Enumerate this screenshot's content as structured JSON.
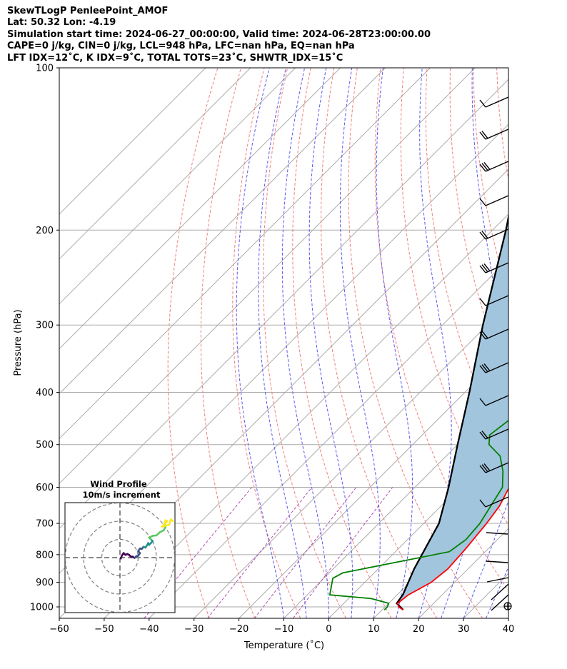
{
  "header": {
    "line1": "SkewTLogP PenleePoint_AMOF",
    "line2": "Lat: 50.32   Lon: -4.19",
    "line3": "Simulation start time: 2024-06-27_00:00:00, Valid time: 2024-06-28T23:00:00.00",
    "line4": "CAPE=0 j/kg, CIN=0 j/kg, LCL=948 hPa, LFC=nan hPa, EQ=nan hPa",
    "line5": "LFT IDX=12˚C, K IDX=9˚C, TOTAL TOTS=23˚C, SHWTR_IDX=15˚C"
  },
  "chart_data": [
    {
      "type": "line",
      "chart": "skew-t log-p",
      "xlabel": "Temperature (˚C)",
      "ylabel": "Pressure (hPa)",
      "xlim": [
        -60,
        40
      ],
      "ylim": [
        1050,
        100
      ],
      "y_scale": "log",
      "x_ticks": [
        -60,
        -50,
        -40,
        -30,
        -20,
        -10,
        0,
        10,
        20,
        30,
        40
      ],
      "y_ticks": [
        100,
        200,
        300,
        400,
        500,
        600,
        700,
        800,
        900,
        1000
      ],
      "grid": true,
      "colors": {
        "temperature": "#ff0000",
        "dewpoint": "#008000",
        "parcel": "#000000",
        "shading": "#a2c5de",
        "isotherms": "#aaaaaa",
        "dry_adiabats": "#f08080",
        "moist_adiabats": "#5a5af0",
        "mixing_ratio": "#b050b0"
      },
      "series": [
        {
          "key": "temperature",
          "points": [
            [
              14.7,
              1013
            ],
            [
              13,
              1000
            ],
            [
              12,
              985
            ],
            [
              12.5,
              950
            ],
            [
              14.8,
              900
            ],
            [
              15.5,
              850
            ],
            [
              15,
              780
            ],
            [
              14,
              700
            ],
            [
              13,
              650
            ],
            [
              11,
              600
            ],
            [
              10,
              550
            ],
            [
              8.8,
              500
            ],
            [
              7,
              450
            ],
            [
              5.3,
              400
            ],
            [
              3.8,
              350
            ],
            [
              2,
              330
            ],
            [
              -1,
              300
            ],
            [
              -5.4,
              250
            ],
            [
              -7.5,
              220
            ],
            [
              -8.5,
              200
            ],
            [
              -7.6,
              190
            ],
            [
              -5.5,
              180
            ],
            [
              -3.5,
              170
            ],
            [
              -2,
              165
            ],
            [
              -1.5,
              160
            ],
            [
              0,
              150
            ],
            [
              2,
              140
            ],
            [
              3.2,
              130
            ],
            [
              3.6,
              120
            ],
            [
              4,
              110
            ],
            [
              5.5,
              100
            ]
          ]
        },
        {
          "key": "dewpoint",
          "points": [
            [
              10.5,
              1013
            ],
            [
              10.5,
              1000
            ],
            [
              10,
              985
            ],
            [
              5,
              965
            ],
            [
              -5,
              950
            ],
            [
              -8,
              885
            ],
            [
              -7,
              865
            ],
            [
              12,
              790
            ],
            [
              13,
              750
            ],
            [
              12.5,
              700
            ],
            [
              9.5,
              600
            ],
            [
              6,
              560
            ],
            [
              2,
              525
            ],
            [
              -3,
              500
            ],
            [
              -5,
              480
            ],
            [
              -4,
              450
            ],
            [
              -3,
              400
            ],
            [
              -2,
              380
            ],
            [
              -1,
              370
            ],
            [
              -1.5,
              350
            ],
            [
              -6,
              320
            ],
            [
              -9,
              300
            ],
            [
              -7,
              280
            ],
            [
              -8,
              260
            ],
            [
              -10,
              230
            ],
            [
              -11,
              210
            ],
            [
              -11,
              200
            ],
            [
              -10,
              190
            ],
            [
              -11,
              180
            ],
            [
              -12,
              170
            ],
            [
              -15,
              160
            ],
            [
              -15,
              150
            ],
            [
              -13,
              140
            ],
            [
              -13.5,
              130
            ],
            [
              -13,
              120
            ],
            [
              -10.5,
              110
            ],
            [
              -9,
              100
            ]
          ]
        },
        {
          "key": "parcel",
          "points": [
            [
              14.7,
              1013
            ],
            [
              11.8,
              985
            ],
            [
              11.2,
              948
            ],
            [
              8,
              850
            ],
            [
              3.4,
              700
            ],
            [
              -2.5,
              600
            ],
            [
              -10,
              500
            ],
            [
              -19,
              400
            ],
            [
              -31,
              300
            ],
            [
              -47,
              200
            ],
            [
              -76,
              100
            ]
          ]
        }
      ],
      "wind_barbs_visible": true
    },
    {
      "type": "line",
      "chart": "hodograph",
      "title": "Wind Profile",
      "subtitle": "10m/s increment",
      "rings": [
        10,
        20,
        30
      ],
      "colors": [
        "#440154",
        "#3b528b",
        "#21908d",
        "#5ec962",
        "#fde725"
      ]
    }
  ]
}
